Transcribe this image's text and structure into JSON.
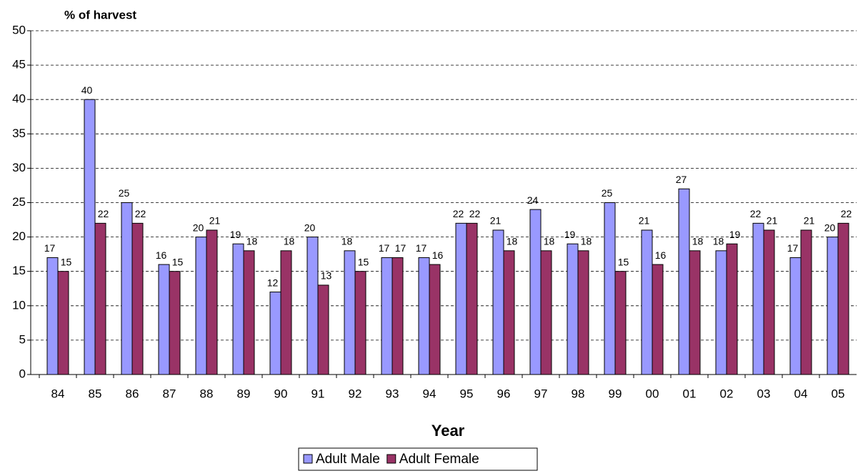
{
  "chart_data": {
    "type": "bar",
    "y_label": "% of harvest",
    "x_label": "Year",
    "categories": [
      "84",
      "85",
      "86",
      "87",
      "88",
      "89",
      "90",
      "91",
      "92",
      "93",
      "94",
      "95",
      "96",
      "97",
      "98",
      "99",
      "00",
      "01",
      "02",
      "03",
      "04",
      "05"
    ],
    "series": [
      {
        "name": "Adult Male",
        "color": "#9999ff",
        "values": [
          17,
          40,
          25,
          16,
          20,
          19,
          12,
          20,
          18,
          17,
          17,
          22,
          21,
          24,
          19,
          25,
          21,
          27,
          18,
          22,
          17,
          20
        ]
      },
      {
        "name": "Adult Female",
        "color": "#993366",
        "values": [
          15,
          22,
          22,
          15,
          21,
          18,
          18,
          13,
          15,
          17,
          16,
          22,
          18,
          18,
          18,
          15,
          16,
          18,
          19,
          21,
          21,
          22
        ]
      }
    ],
    "ylim": [
      0,
      50
    ],
    "yticks": [
      0,
      5,
      10,
      15,
      20,
      25,
      30,
      35,
      40,
      45,
      50
    ],
    "grid": true,
    "legend": "bottom"
  }
}
